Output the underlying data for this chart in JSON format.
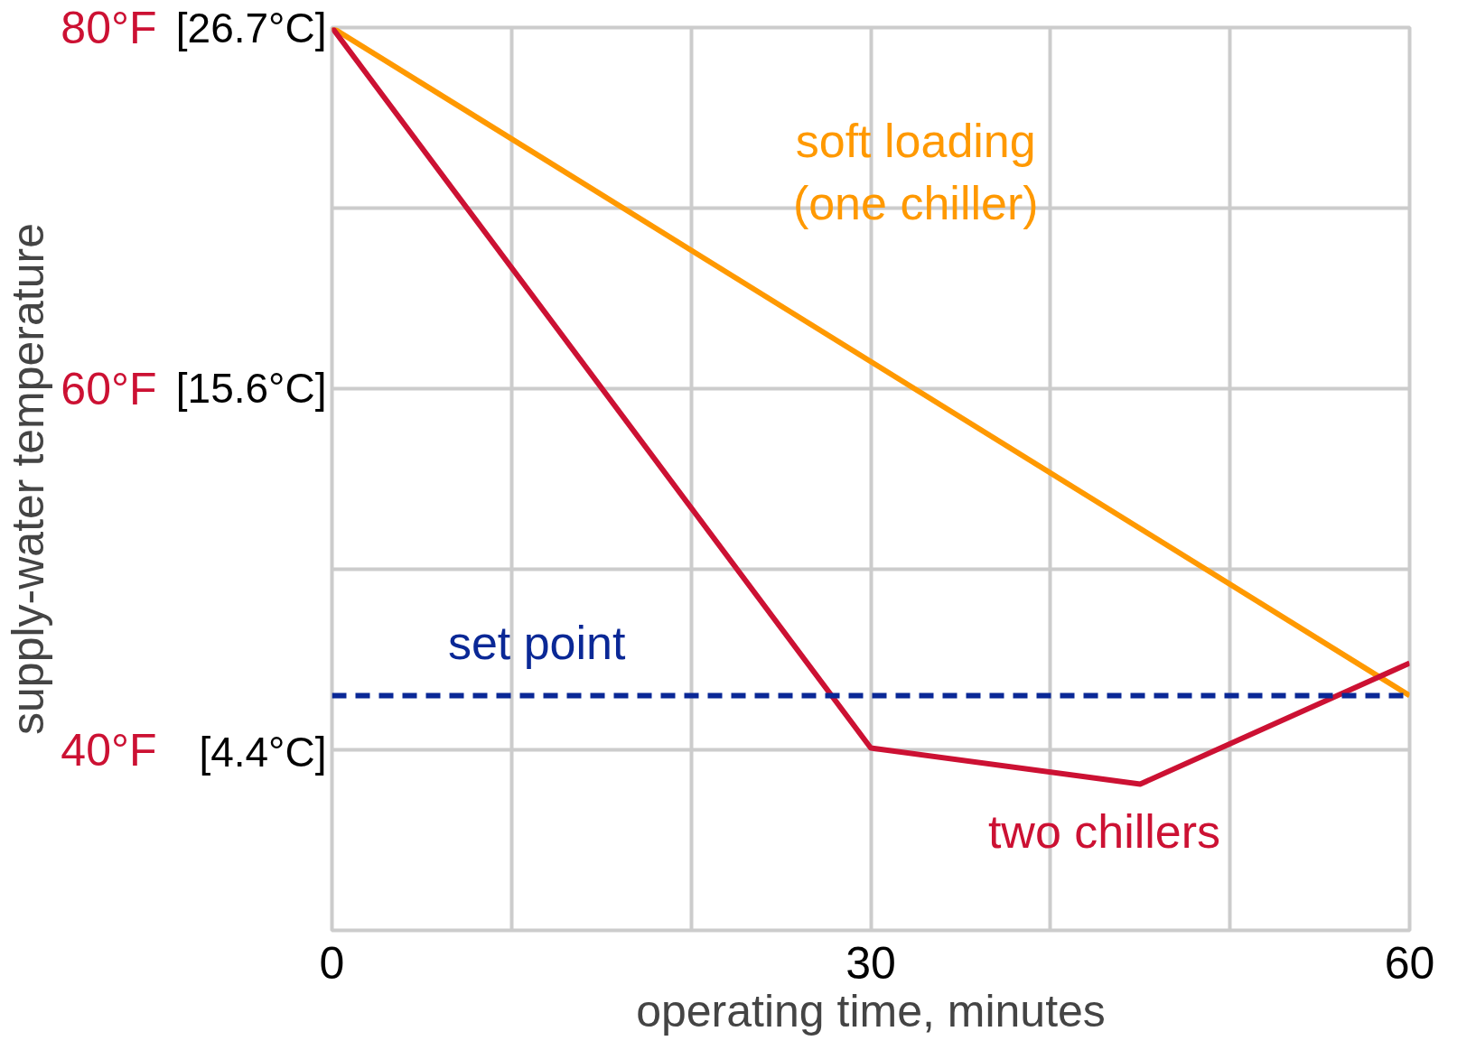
{
  "chart_data": {
    "type": "line",
    "xlabel": "operating time, minutes",
    "ylabel": "supply-water temperature",
    "xlim": [
      0,
      60
    ],
    "ylim": [
      30,
      80
    ],
    "xticks": [
      0,
      {
        "value": 10,
        "label": null
      },
      {
        "value": 20,
        "label": null
      },
      30,
      {
        "value": 40,
        "label": null
      },
      {
        "value": 50,
        "label": null
      },
      60
    ],
    "yticks": [
      {
        "value": 30,
        "label": null
      },
      {
        "value": 40,
        "label": "40°F"
      },
      {
        "value": 50,
        "label": null
      },
      {
        "value": 60,
        "label": "60°F"
      },
      {
        "value": 70,
        "label": null
      },
      {
        "value": 80,
        "label": "80°F"
      }
    ],
    "y2lim": [
      -1.1,
      26.7
    ],
    "y2ticks": [
      {
        "value": 4.4,
        "label": "[4.4°C]"
      },
      {
        "value": 15.6,
        "label": "[15.6°C]"
      },
      {
        "value": 26.7,
        "label": "[26.7°C]"
      }
    ],
    "grid": true,
    "legend": false,
    "marker": "none",
    "line_style": "solid",
    "series": [
      {
        "name": "soft loading\n(one chiller)",
        "color": "#ff9900",
        "x": [
          0,
          60
        ],
        "values": [
          80,
          43
        ]
      },
      {
        "name": "two chillers",
        "color": "#cc1133",
        "x": [
          0,
          30,
          45,
          60
        ],
        "values": [
          80,
          40.1,
          38.1,
          44.8
        ]
      }
    ],
    "ref_lines": [
      {
        "axis": "y",
        "value": 43,
        "label": "set point",
        "color": "#0a2896",
        "line_style": "dashed"
      }
    ]
  }
}
